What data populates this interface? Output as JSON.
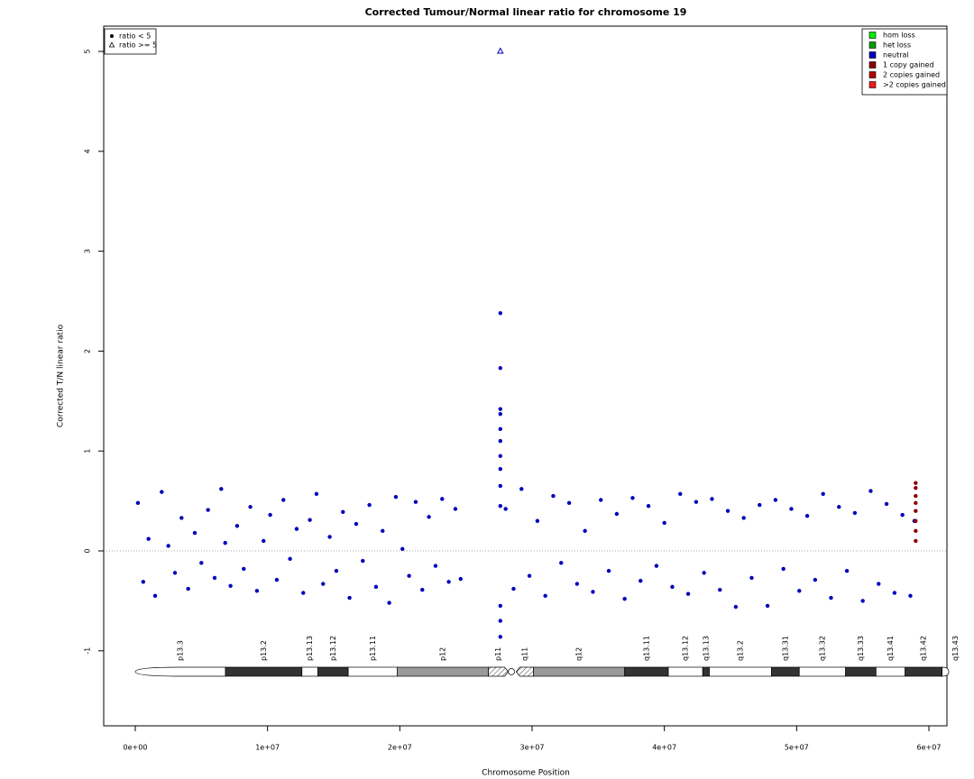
{
  "chart_data": {
    "type": "scatter",
    "title": "Corrected Tumour/Normal linear ratio for chromosome  19",
    "x_label": "Chromosome Position",
    "y_label": "Corrected T/N linear ratio",
    "xlim": [
      -2386000,
      61364000
    ],
    "ylim": [
      -1.751,
      5.253
    ],
    "xticks": [
      {
        "value": 0,
        "label": "0e+00"
      },
      {
        "value": 10000000,
        "label": "1e+07"
      },
      {
        "value": 20000000,
        "label": "2e+07"
      },
      {
        "value": 30000000,
        "label": "3e+07"
      },
      {
        "value": 40000000,
        "label": "4e+07"
      },
      {
        "value": 50000000,
        "label": "5e+07"
      },
      {
        "value": 60000000,
        "label": "6e+07"
      }
    ],
    "yticks": [
      -1,
      0,
      1,
      2,
      3,
      4,
      5
    ],
    "reference_line": 0,
    "shape_legend": [
      {
        "label": "ratio < 5",
        "marker": "dot"
      },
      {
        "label": "ratio >= 5",
        "marker": "triangle"
      }
    ],
    "series": [
      {
        "name": "hom loss",
        "color": "#00ee00",
        "x": [],
        "values": [],
        "x_high": [],
        "values_high": []
      },
      {
        "name": "het loss",
        "color": "#00a000",
        "x": [],
        "values": [],
        "x_high": [],
        "values_high": []
      },
      {
        "name": "neutral",
        "color": "#0000bb",
        "x": [
          200000,
          600000,
          1000000,
          1500000,
          2000000,
          2500000,
          3000000,
          3500000,
          4000000,
          4500000,
          5000000,
          5500000,
          6000000,
          6500000,
          6800000,
          7200000,
          7700000,
          8200000,
          8700000,
          9200000,
          9700000,
          10200000,
          10700000,
          11200000,
          11700000,
          12200000,
          12700000,
          13200000,
          13700000,
          14200000,
          14700000,
          15200000,
          15700000,
          16200000,
          16700000,
          17200000,
          17700000,
          18200000,
          18700000,
          19200000,
          19700000,
          20200000,
          20700000,
          21200000,
          21700000,
          22200000,
          22700000,
          23200000,
          23700000,
          24200000,
          24600000,
          27600000,
          27600000,
          27600000,
          27600000,
          27600000,
          27600000,
          27600000,
          27600000,
          27600000,
          27600000,
          27600000,
          27600000,
          27600000,
          28000000,
          28600000,
          29200000,
          29800000,
          30400000,
          31000000,
          31600000,
          32200000,
          32800000,
          33400000,
          34000000,
          34600000,
          35200000,
          35800000,
          36400000,
          37000000,
          37600000,
          38200000,
          38800000,
          39400000,
          40000000,
          40600000,
          41200000,
          41800000,
          42400000,
          43000000,
          43600000,
          44200000,
          44800000,
          45400000,
          46000000,
          46600000,
          47200000,
          47800000,
          48400000,
          49000000,
          49600000,
          50200000,
          50800000,
          51400000,
          52000000,
          52600000,
          53200000,
          53800000,
          54400000,
          55000000,
          55600000,
          56200000,
          56800000,
          57400000,
          58000000,
          58600000,
          58900000
        ],
        "values": [
          0.48,
          -0.31,
          0.12,
          -0.45,
          0.59,
          0.05,
          -0.22,
          0.33,
          -0.38,
          0.18,
          -0.12,
          0.41,
          -0.27,
          0.62,
          0.08,
          -0.35,
          0.25,
          -0.18,
          0.44,
          -0.4,
          0.1,
          0.36,
          -0.29,
          0.51,
          -0.08,
          0.22,
          -0.42,
          0.31,
          0.57,
          -0.33,
          0.14,
          -0.2,
          0.39,
          -0.47,
          0.27,
          -0.1,
          0.46,
          -0.36,
          0.2,
          -0.52,
          0.54,
          0.02,
          -0.25,
          0.49,
          -0.39,
          0.34,
          -0.15,
          0.52,
          -0.31,
          0.42,
          -0.28,
          2.38,
          1.83,
          1.42,
          1.37,
          1.22,
          1.1,
          0.95,
          0.82,
          0.65,
          0.45,
          -0.55,
          -0.7,
          -0.86,
          0.42,
          -0.38,
          0.62,
          -0.25,
          0.3,
          -0.45,
          0.55,
          -0.12,
          0.48,
          -0.33,
          0.2,
          -0.41,
          0.51,
          -0.2,
          0.37,
          -0.48,
          0.53,
          -0.3,
          0.45,
          -0.15,
          0.28,
          -0.36,
          0.57,
          -0.43,
          0.49,
          -0.22,
          0.52,
          -0.39,
          0.4,
          -0.56,
          0.33,
          -0.27,
          0.46,
          -0.55,
          0.51,
          -0.18,
          0.42,
          -0.4,
          0.35,
          -0.29,
          0.57,
          -0.47,
          0.44,
          -0.2,
          0.38,
          -0.5,
          0.6,
          -0.33,
          0.47,
          -0.42,
          0.36,
          -0.45,
          0.3
        ],
        "x_high": [
          27600000
        ],
        "values_high": [
          5
        ]
      },
      {
        "name": "1 copy gained",
        "color": "#8b0000",
        "x": [
          59000000,
          59000000,
          59000000,
          59000000,
          59000000,
          59000000,
          59000000,
          59000000
        ],
        "values": [
          0.68,
          0.63,
          0.55,
          0.48,
          0.4,
          0.3,
          0.2,
          0.1
        ],
        "x_high": [],
        "values_high": []
      },
      {
        "name": "2 copies gained",
        "color": "#b00000",
        "x": [],
        "values": [],
        "x_high": [],
        "values_high": []
      },
      {
        "name": ">2 copies gained",
        "color": "#ee1c1c",
        "x": [],
        "values": [],
        "x_high": [],
        "values_high": []
      }
    ],
    "ideogram": [
      {
        "name": "p13.3",
        "start": 0,
        "end": 6820000,
        "fill": "#ffffff"
      },
      {
        "name": "p13.2",
        "start": 6820000,
        "end": 12600000,
        "fill": "#333333"
      },
      {
        "name": "p13.13",
        "start": 12600000,
        "end": 13800000,
        "fill": "#ffffff"
      },
      {
        "name": "p13.12",
        "start": 13800000,
        "end": 16100000,
        "fill": "#333333"
      },
      {
        "name": "p13.11",
        "start": 16100000,
        "end": 19800000,
        "fill": "#ffffff"
      },
      {
        "name": "p12",
        "start": 19800000,
        "end": 26700000,
        "fill": "#999999"
      },
      {
        "name": "p11",
        "start": 26700000,
        "end": 28200000,
        "fill": "hatch"
      },
      {
        "name": "q11",
        "start": 28800000,
        "end": 30100000,
        "fill": "hatch"
      },
      {
        "name": "q12",
        "start": 30100000,
        "end": 37000000,
        "fill": "#999999"
      },
      {
        "name": "q13.11",
        "start": 37000000,
        "end": 40300000,
        "fill": "#333333"
      },
      {
        "name": "q13.12",
        "start": 40300000,
        "end": 42900000,
        "fill": "#ffffff"
      },
      {
        "name": "q13.13",
        "start": 42900000,
        "end": 43400000,
        "fill": "#333333"
      },
      {
        "name": "q13.2",
        "start": 43400000,
        "end": 48100000,
        "fill": "#ffffff"
      },
      {
        "name": "q13.31",
        "start": 48100000,
        "end": 50200000,
        "fill": "#333333"
      },
      {
        "name": "q13.32",
        "start": 50200000,
        "end": 53700000,
        "fill": "#ffffff"
      },
      {
        "name": "q13.33",
        "start": 53700000,
        "end": 56000000,
        "fill": "#333333"
      },
      {
        "name": "q13.41",
        "start": 56000000,
        "end": 58200000,
        "fill": "#ffffff"
      },
      {
        "name": "q13.42",
        "start": 58200000,
        "end": 61000000,
        "fill": "#333333"
      },
      {
        "name": "q13.43",
        "start": 61000000,
        "end": 61364000,
        "fill": "#ffffff"
      }
    ]
  }
}
